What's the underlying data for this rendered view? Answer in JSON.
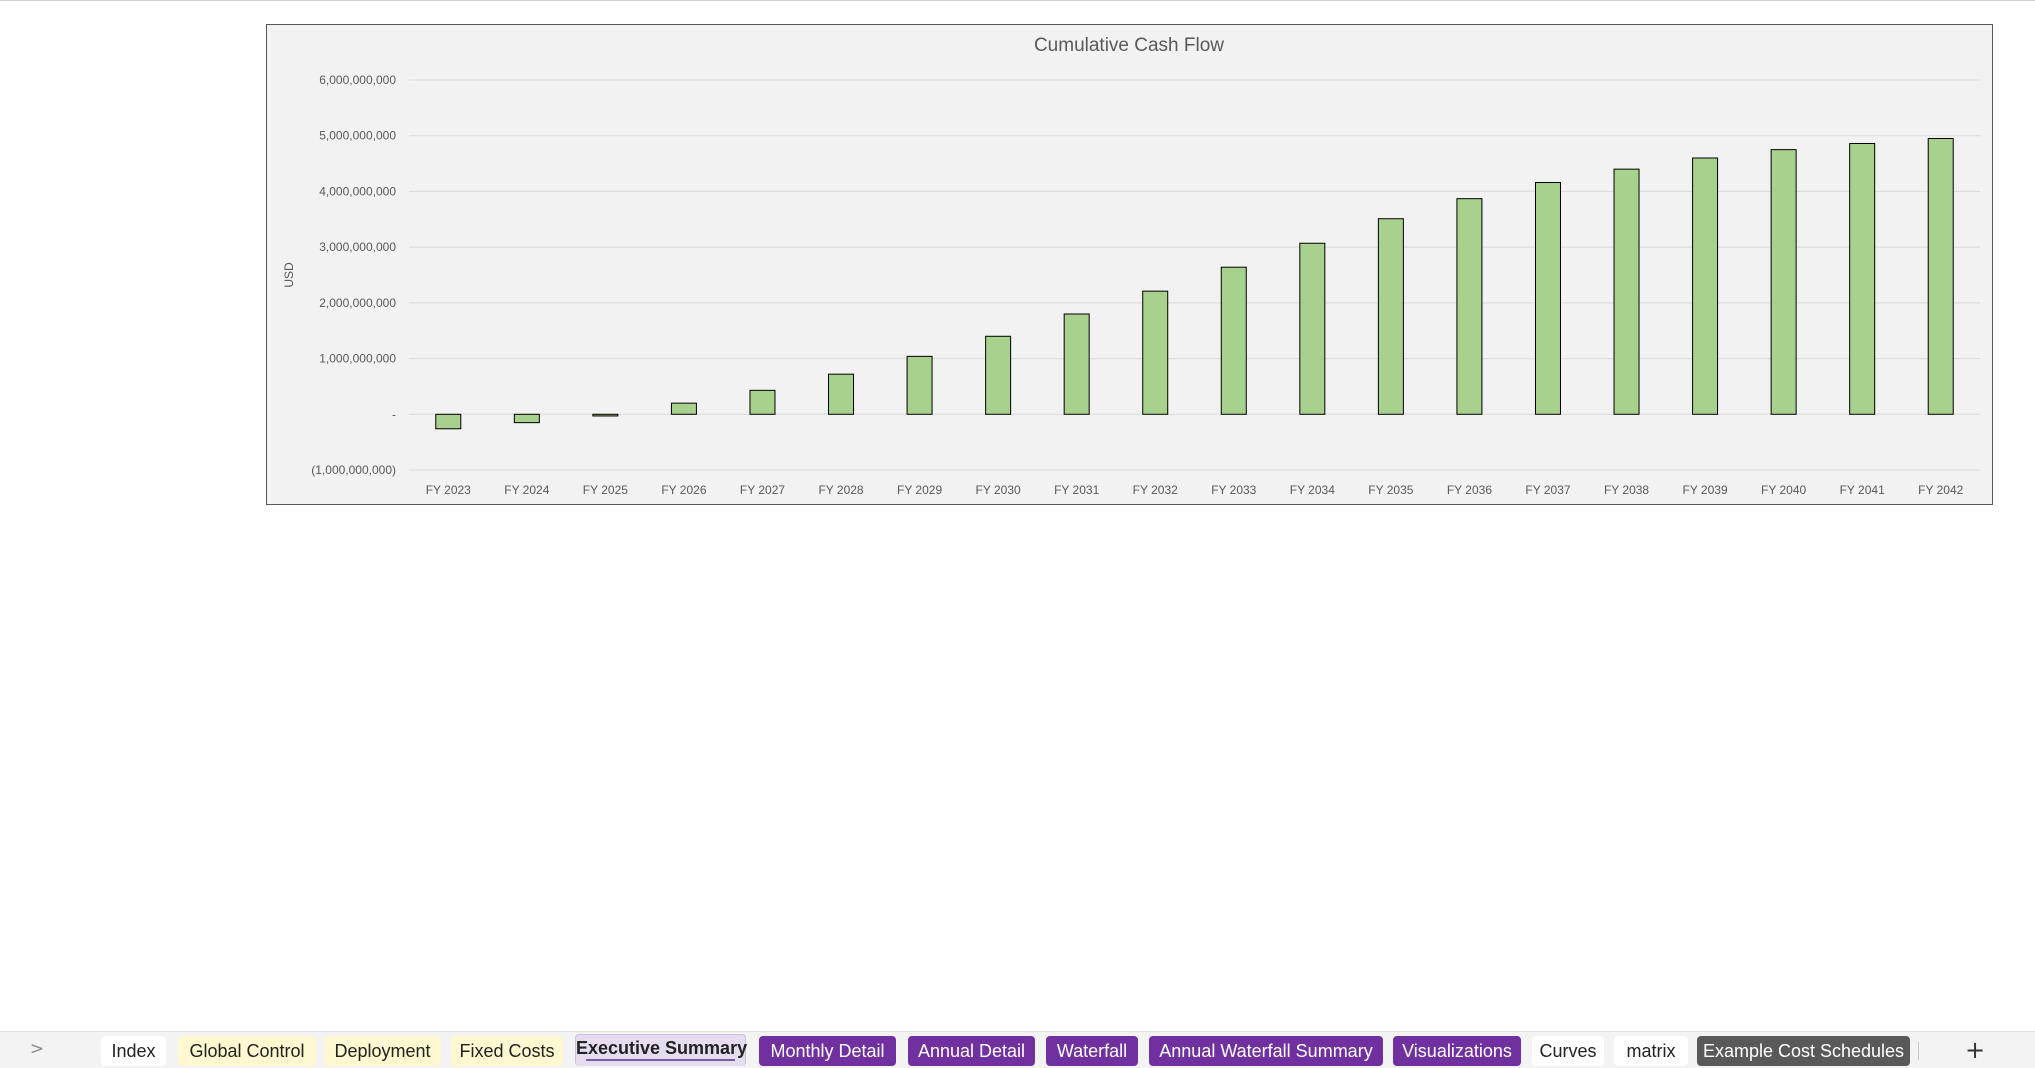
{
  "chart_data": {
    "type": "bar",
    "title": "Cumulative Cash Flow",
    "xlabel": "",
    "ylabel": "USD",
    "categories": [
      "FY 2023",
      "FY 2024",
      "FY 2025",
      "FY 2026",
      "FY 2027",
      "FY 2028",
      "FY 2029",
      "FY 2030",
      "FY 2031",
      "FY 2032",
      "FY 2033",
      "FY 2034",
      "FY 2035",
      "FY 2036",
      "FY 2037",
      "FY 2038",
      "FY 2039",
      "FY 2040",
      "FY 2041",
      "FY 2042"
    ],
    "values": [
      -260000000,
      -150000000,
      -30000000,
      200000000,
      430000000,
      720000000,
      1040000000,
      1400000000,
      1800000000,
      2210000000,
      2640000000,
      3070000000,
      3510000000,
      3870000000,
      4160000000,
      4400000000,
      4600000000,
      4750000000,
      4860000000,
      4950000000
    ],
    "ylim": [
      -1000000000,
      6000000000
    ],
    "yticks": [
      6000000000,
      5000000000,
      4000000000,
      3000000000,
      2000000000,
      1000000000,
      0,
      -1000000000
    ],
    "ytick_labels": [
      "6,000,000,000",
      "5,000,000,000",
      "4,000,000,000",
      "3,000,000,000",
      "2,000,000,000",
      "1,000,000,000",
      "-",
      "(1,000,000,000)"
    ],
    "grid": true,
    "colors": {
      "bar_fill": "#a9d18e",
      "bar_stroke": "#000000",
      "background": "#f2f2f2",
      "gridline": "#d9d9d9",
      "text": "#595959"
    }
  },
  "sheet_tabs": [
    {
      "label": "Index",
      "color": "white"
    },
    {
      "label": "Global Control",
      "color": "yellow"
    },
    {
      "label": "Deployment",
      "color": "yellow"
    },
    {
      "label": "Fixed Costs",
      "color": "yellow"
    },
    {
      "label": "Executive Summary",
      "color": "active"
    },
    {
      "label": "Monthly Detail",
      "color": "purple"
    },
    {
      "label": "Annual Detail",
      "color": "purple"
    },
    {
      "label": "Waterfall",
      "color": "purple"
    },
    {
      "label": "Annual Waterfall Summary",
      "color": "purple"
    },
    {
      "label": "Visualizations",
      "color": "purple"
    },
    {
      "label": "Curves",
      "color": "white"
    },
    {
      "label": "matrix",
      "color": "white"
    },
    {
      "label": "Example Cost Schedules",
      "color": "gray"
    }
  ],
  "tabbar": {
    "nav_icon": "chevron-right-icon",
    "nav_glyph": ">",
    "add_icon": "plus-icon",
    "add_glyph": "+"
  }
}
